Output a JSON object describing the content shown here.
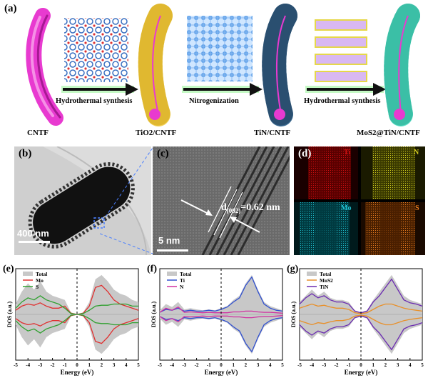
{
  "panel_a": {
    "label": "(a)",
    "steps": [
      "Hydrothermal synthesis",
      "Nitrogenization",
      "Hydrothermal synthesis"
    ],
    "materials": [
      "CNTF",
      "TiO2/CNTF",
      "TiN/CNTF",
      "MoS2@TiN/CNTF"
    ],
    "colors": {
      "cntf": "#e83ad0",
      "tio2": "#f2d25a",
      "tin": "#3e6e95",
      "mos2": "#5ee0c9",
      "arrow": "#111111",
      "glow": "#9cf59c"
    }
  },
  "panel_b": {
    "label": "(b)",
    "scale_bar": "400 nm"
  },
  "panel_c": {
    "label": "(c)",
    "spacing_prefix": "d",
    "spacing_sub": "(002)",
    "spacing_value": "=0.62 nm",
    "scale_bar": "5 nm"
  },
  "panel_d": {
    "label": "(d)",
    "maps": [
      {
        "element": "Ti",
        "color": "#d01010"
      },
      {
        "element": "N",
        "color": "#d8d020"
      },
      {
        "element": "Mo",
        "color": "#20c0d0"
      },
      {
        "element": "S",
        "color": "#f08020"
      }
    ]
  },
  "dos_panels": [
    {
      "label": "(e)",
      "legend": [
        "Total",
        "Mo",
        "S"
      ],
      "legend_colors": [
        "#c8c8c8",
        "#e03030",
        "#30a030"
      ],
      "ylabel": "DOS (a.u.)",
      "xlabel": "Energy (eV)",
      "xticks": [
        "-5",
        "-4",
        "-3",
        "-2",
        "-1",
        "0",
        "1",
        "2",
        "3",
        "4",
        "5"
      ]
    },
    {
      "label": "(f)",
      "legend": [
        "Total",
        "Ti",
        "N"
      ],
      "legend_colors": [
        "#c8c8c8",
        "#3050d0",
        "#d030a0"
      ],
      "ylabel": "DOS (a.u.)",
      "xlabel": "Energy (eV)",
      "xticks": [
        "-5",
        "-4",
        "-3",
        "-2",
        "-1",
        "0",
        "1",
        "2",
        "3",
        "4",
        "5"
      ]
    },
    {
      "label": "(g)",
      "legend": [
        "Total",
        "MoS2",
        "TiN"
      ],
      "legend_colors": [
        "#c8c8c8",
        "#e8902a",
        "#6a2ab0"
      ],
      "ylabel": "DOS (a.u.)",
      "xlabel": "Energy (eV)",
      "xticks": [
        "-5",
        "-4",
        "-3",
        "-2",
        "-1",
        "0",
        "1",
        "2",
        "3",
        "4",
        "5"
      ]
    }
  ],
  "chart_data": [
    {
      "type": "area",
      "title": "(e)",
      "xlabel": "Energy (eV)",
      "ylabel": "DOS (a.u.)",
      "xlim": [
        -5,
        5
      ],
      "series": [
        {
          "name": "Total",
          "x": [
            -5,
            -4.5,
            -4,
            -3.5,
            -3,
            -2.5,
            -2,
            -1.5,
            -1,
            -0.5,
            0,
            0.5,
            1,
            1.5,
            2,
            2.5,
            3,
            3.5,
            4,
            4.5,
            5
          ],
          "values": [
            0.25,
            0.55,
            0.75,
            0.6,
            0.8,
            0.55,
            0.45,
            0.4,
            0.35,
            0.05,
            0,
            0.05,
            0.3,
            0.85,
            0.95,
            0.8,
            0.6,
            0.5,
            0.45,
            0.35,
            0.3
          ]
        },
        {
          "name": "Mo",
          "x": [
            -5,
            -4.5,
            -4,
            -3.5,
            -3,
            -2.5,
            -2,
            -1.5,
            -1,
            -0.5,
            0,
            0.5,
            1,
            1.5,
            2,
            2.5,
            3,
            3.5,
            4,
            4.5,
            5
          ],
          "values": [
            0.1,
            0.2,
            0.25,
            0.22,
            0.28,
            0.2,
            0.15,
            0.15,
            0.2,
            0.03,
            0,
            0.03,
            0.2,
            0.65,
            0.7,
            0.55,
            0.35,
            0.25,
            0.2,
            0.15,
            0.1
          ]
        },
        {
          "name": "S",
          "x": [
            -5,
            -4.5,
            -4,
            -3.5,
            -3,
            -2.5,
            -2,
            -1.5,
            -1,
            -0.5,
            0,
            0.5,
            1,
            1.5,
            2,
            2.5,
            3,
            3.5,
            4,
            4.5,
            5
          ],
          "values": [
            0.15,
            0.3,
            0.4,
            0.35,
            0.45,
            0.35,
            0.3,
            0.25,
            0.15,
            0.02,
            0,
            0.02,
            0.1,
            0.2,
            0.22,
            0.22,
            0.25,
            0.25,
            0.25,
            0.2,
            0.2
          ]
        }
      ]
    },
    {
      "type": "area",
      "title": "(f)",
      "xlabel": "Energy (eV)",
      "ylabel": "DOS (a.u.)",
      "xlim": [
        -5,
        5
      ],
      "series": [
        {
          "name": "Total",
          "x": [
            -5,
            -4.5,
            -4,
            -3.5,
            -3,
            -2.5,
            -2,
            -1.5,
            -1,
            -0.5,
            0,
            0.5,
            1,
            1.5,
            2,
            2.5,
            3,
            3.5,
            4,
            4.5,
            5
          ],
          "values": [
            0.1,
            0.25,
            0.18,
            0.3,
            0.12,
            0.15,
            0.12,
            0.1,
            0.12,
            0.1,
            0.15,
            0.2,
            0.35,
            0.45,
            0.75,
            0.95,
            0.6,
            0.3,
            0.2,
            0.15,
            0.1
          ]
        },
        {
          "name": "Ti",
          "x": [
            -5,
            -4.5,
            -4,
            -3.5,
            -3,
            -2.5,
            -2,
            -1.5,
            -1,
            -0.5,
            0,
            0.5,
            1,
            1.5,
            2,
            2.5,
            3,
            3.5,
            4,
            4.5,
            5
          ],
          "values": [
            0.05,
            0.12,
            0.1,
            0.15,
            0.08,
            0.1,
            0.08,
            0.08,
            0.1,
            0.08,
            0.12,
            0.18,
            0.3,
            0.4,
            0.7,
            0.9,
            0.55,
            0.25,
            0.15,
            0.1,
            0.08
          ]
        },
        {
          "name": "N",
          "x": [
            -5,
            -4.5,
            -4,
            -3.5,
            -3,
            -2.5,
            -2,
            -1.5,
            -1,
            -0.5,
            0,
            0.5,
            1,
            1.5,
            2,
            2.5,
            3,
            3.5,
            4,
            4.5,
            5
          ],
          "values": [
            0.05,
            0.15,
            0.1,
            0.18,
            0.05,
            0.06,
            0.05,
            0.04,
            0.05,
            0.04,
            0.04,
            0.04,
            0.06,
            0.06,
            0.08,
            0.08,
            0.06,
            0.05,
            0.05,
            0.04,
            0.03
          ]
        }
      ]
    },
    {
      "type": "area",
      "title": "(g)",
      "xlabel": "Energy (eV)",
      "ylabel": "DOS (a.u.)",
      "xlim": [
        -5,
        5
      ],
      "series": [
        {
          "name": "Total",
          "x": [
            -5,
            -4.5,
            -4,
            -3.5,
            -3,
            -2.5,
            -2,
            -1.5,
            -1,
            -0.5,
            0,
            0.5,
            1,
            1.5,
            2,
            2.5,
            3,
            3.5,
            4,
            4.5,
            5
          ],
          "values": [
            0.3,
            0.45,
            0.6,
            0.45,
            0.55,
            0.4,
            0.35,
            0.35,
            0.3,
            0.1,
            0.05,
            0.1,
            0.35,
            0.55,
            0.75,
            0.95,
            0.7,
            0.45,
            0.35,
            0.3,
            0.25
          ]
        },
        {
          "name": "MoS2",
          "x": [
            -5,
            -4.5,
            -4,
            -3.5,
            -3,
            -2.5,
            -2,
            -1.5,
            -1,
            -0.5,
            0,
            0.5,
            1,
            1.5,
            2,
            2.5,
            3,
            3.5,
            4,
            4.5,
            5
          ],
          "values": [
            0.15,
            0.2,
            0.25,
            0.2,
            0.22,
            0.18,
            0.15,
            0.15,
            0.12,
            0.04,
            0.02,
            0.04,
            0.12,
            0.2,
            0.25,
            0.25,
            0.2,
            0.15,
            0.12,
            0.1,
            0.08
          ]
        },
        {
          "name": "TiN",
          "x": [
            -5,
            -4.5,
            -4,
            -3.5,
            -3,
            -2.5,
            -2,
            -1.5,
            -1,
            -0.5,
            0,
            0.5,
            1,
            1.5,
            2,
            2.5,
            3,
            3.5,
            4,
            4.5,
            5
          ],
          "values": [
            0.25,
            0.4,
            0.5,
            0.4,
            0.45,
            0.35,
            0.3,
            0.3,
            0.25,
            0.08,
            0.04,
            0.08,
            0.3,
            0.45,
            0.65,
            0.85,
            0.6,
            0.35,
            0.28,
            0.25,
            0.2
          ]
        }
      ]
    }
  ]
}
